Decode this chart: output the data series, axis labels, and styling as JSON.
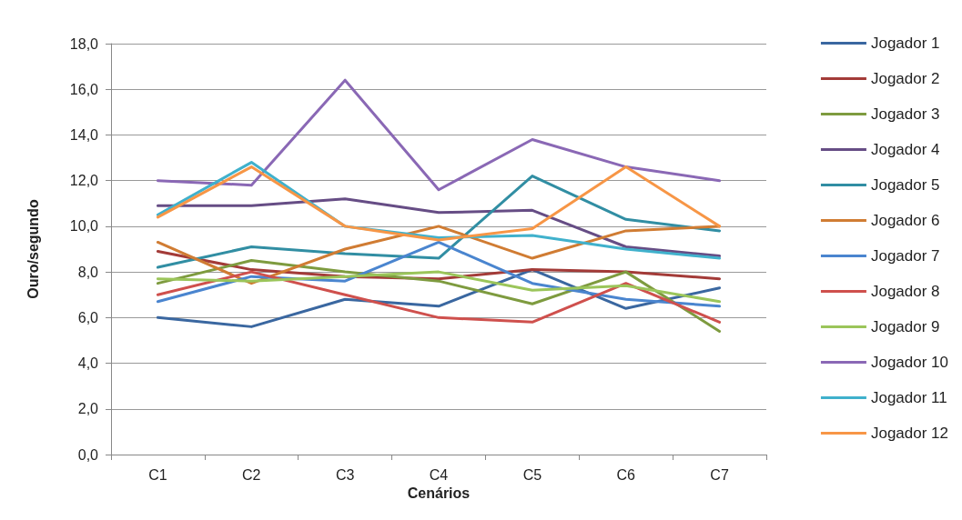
{
  "chart_data": {
    "type": "line",
    "xlabel": "Cenários",
    "ylabel": "Ouro/segundo",
    "categories": [
      "C1",
      "C2",
      "C3",
      "C4",
      "C5",
      "C6",
      "C7"
    ],
    "ylim": [
      0,
      18
    ],
    "yticks": [
      {
        "value": 0,
        "label": "0,0"
      },
      {
        "value": 2,
        "label": "2,0"
      },
      {
        "value": 4,
        "label": "4,0"
      },
      {
        "value": 6,
        "label": "6,0"
      },
      {
        "value": 8,
        "label": "8,0"
      },
      {
        "value": 10,
        "label": "10,0"
      },
      {
        "value": 12,
        "label": "12,0"
      },
      {
        "value": 14,
        "label": "14,0"
      },
      {
        "value": 16,
        "label": "16,0"
      },
      {
        "value": 18,
        "label": "18,0"
      }
    ],
    "grid": "y",
    "legend": "right",
    "marker": "none",
    "line_style": "solid",
    "series": [
      {
        "name": "Jogador 1",
        "color": "#3a67a0",
        "values": [
          6.0,
          5.6,
          6.8,
          6.5,
          8.1,
          6.4,
          7.3
        ]
      },
      {
        "name": "Jogador 2",
        "color": "#a33b38",
        "values": [
          8.9,
          8.1,
          7.8,
          7.7,
          8.1,
          8.0,
          7.7
        ]
      },
      {
        "name": "Jogador 3",
        "color": "#7e9b3f",
        "values": [
          7.5,
          8.5,
          8.0,
          7.6,
          6.6,
          8.0,
          5.4
        ]
      },
      {
        "name": "Jogador 4",
        "color": "#664d85",
        "values": [
          10.9,
          10.9,
          11.2,
          10.6,
          10.7,
          9.1,
          8.7
        ]
      },
      {
        "name": "Jogador 5",
        "color": "#318ea3",
        "values": [
          8.2,
          9.1,
          8.8,
          8.6,
          12.2,
          10.3,
          9.8
        ]
      },
      {
        "name": "Jogador 6",
        "color": "#d07c33",
        "values": [
          9.3,
          7.5,
          9.0,
          10.0,
          8.6,
          9.8,
          10.0
        ]
      },
      {
        "name": "Jogador 7",
        "color": "#4a85cf",
        "values": [
          6.7,
          7.8,
          7.6,
          9.3,
          7.5,
          6.8,
          6.5
        ]
      },
      {
        "name": "Jogador 8",
        "color": "#cf504d",
        "values": [
          7.0,
          8.0,
          7.0,
          6.0,
          5.8,
          7.5,
          5.8
        ]
      },
      {
        "name": "Jogador 9",
        "color": "#9bc55a",
        "values": [
          7.7,
          7.6,
          7.8,
          8.0,
          7.2,
          7.4,
          6.7
        ]
      },
      {
        "name": "Jogador 10",
        "color": "#8a68b5",
        "values": [
          12.0,
          11.8,
          16.4,
          11.6,
          13.8,
          12.6,
          12.0
        ]
      },
      {
        "name": "Jogador 11",
        "color": "#40b1cc",
        "values": [
          10.5,
          12.8,
          10.0,
          9.5,
          9.6,
          9.0,
          8.6
        ]
      },
      {
        "name": "Jogador 12",
        "color": "#f79646",
        "values": [
          10.4,
          12.6,
          10.0,
          9.4,
          9.9,
          12.6,
          10.0
        ]
      }
    ]
  }
}
